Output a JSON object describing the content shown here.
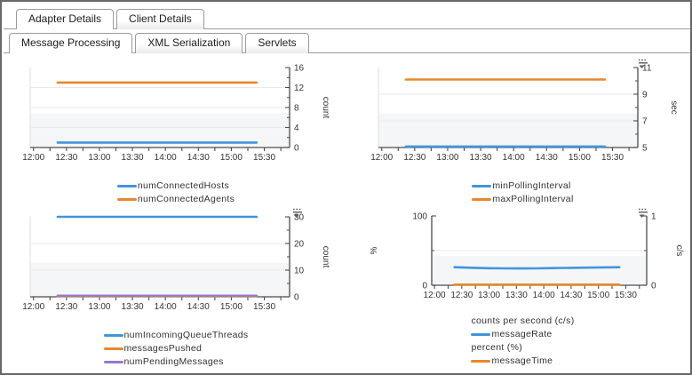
{
  "tabs_primary": [
    {
      "label": "Adapter Details",
      "active": true
    },
    {
      "label": "Client Details",
      "active": false
    }
  ],
  "tabs_secondary": [
    {
      "label": "Message Processing",
      "active": true
    },
    {
      "label": "XML Serialization",
      "active": false
    },
    {
      "label": "Servlets",
      "active": false
    }
  ],
  "colors": {
    "blue": "#4394DA",
    "orange": "#E8882A",
    "purple": "#9779C9",
    "grid": "#e7e9eb",
    "band": "#f5f6f8",
    "plot_edge": "#dddddd",
    "axis": "#4c4c4c",
    "tick_text": "#333333"
  },
  "time_axis": {
    "labels": [
      "12:00",
      "12:30",
      "13:00",
      "13:30",
      "14:00",
      "14:30",
      "15:00",
      "15:30"
    ],
    "label_step_min": 30,
    "minor_step_min": 15,
    "domain_start_min": -3,
    "domain_end_min": 233,
    "series_start_min": 22,
    "series_end_min": 203
  },
  "chart_data": [
    {
      "id": "connected-hosts-agents",
      "type": "line",
      "menu_icon": false,
      "y_right": {
        "title": "count",
        "min": 0,
        "max": 16,
        "majors": [
          0,
          4,
          8,
          12,
          16
        ],
        "minors": [
          2,
          6,
          10,
          14
        ],
        "grid": [
          4,
          8,
          12
        ]
      },
      "series": [
        {
          "name": "numConnectedHosts",
          "color_key": "blue",
          "axis": "right",
          "values": [
            1,
            1
          ]
        },
        {
          "name": "numConnectedAgents",
          "color_key": "orange",
          "axis": "right",
          "values": [
            13,
            13
          ]
        }
      ],
      "legend": [
        {
          "swatch": "blue",
          "label": "numConnectedHosts"
        },
        {
          "swatch": "orange",
          "label": "numConnectedAgents"
        }
      ]
    },
    {
      "id": "polling-interval",
      "type": "line",
      "menu_icon": true,
      "y_right": {
        "title": "sec",
        "min": 5,
        "max": 11,
        "majors": [
          5,
          7,
          9,
          11
        ],
        "minors": [
          6,
          8,
          10
        ],
        "grid": [
          7,
          9
        ]
      },
      "series": [
        {
          "name": "minPollingInterval",
          "color_key": "blue",
          "axis": "right",
          "values": [
            5.07,
            5.07
          ]
        },
        {
          "name": "maxPollingInterval",
          "color_key": "orange",
          "axis": "right",
          "values": [
            10.1,
            10.1
          ]
        }
      ],
      "legend": [
        {
          "swatch": "blue",
          "label": "minPollingInterval"
        },
        {
          "swatch": "orange",
          "label": "maxPollingInterval"
        }
      ]
    },
    {
      "id": "queue-threads-messages",
      "type": "line",
      "menu_icon": true,
      "y_right": {
        "title": "count",
        "min": 0,
        "max": 30,
        "majors": [
          0,
          10,
          20,
          30
        ],
        "minors": [
          5,
          15,
          25
        ],
        "grid": [
          10,
          20
        ]
      },
      "series": [
        {
          "name": "numIncomingQueueThreads",
          "color_key": "blue",
          "axis": "right",
          "values": [
            30,
            30
          ]
        },
        {
          "name": "messagesPushed",
          "color_key": "orange",
          "axis": "right",
          "values": [
            0.25,
            0.25
          ]
        },
        {
          "name": "numPendingMessages",
          "color_key": "purple",
          "axis": "right",
          "values": [
            0.4,
            0.4
          ]
        }
      ],
      "legend": [
        {
          "swatch": "blue",
          "label": "numIncomingQueueThreads"
        },
        {
          "swatch": "orange",
          "label": "messagesPushed"
        },
        {
          "swatch": "purple",
          "label": "numPendingMessages"
        }
      ]
    },
    {
      "id": "message-rate-time",
      "type": "line",
      "menu_icon": true,
      "y_left": {
        "title": "%",
        "min": 0,
        "max": 100,
        "majors": [
          0,
          100
        ],
        "minors": [
          50
        ],
        "grid": [
          50
        ]
      },
      "y_right": {
        "title": "c/s",
        "min": 0,
        "max": 1,
        "majors": [
          0,
          1
        ],
        "minors": [
          0.5
        ],
        "grid": []
      },
      "series": [
        {
          "name": "messageRate",
          "color_key": "blue",
          "axis": "right",
          "values": [
            0.26,
            0.252,
            0.246,
            0.243,
            0.242,
            0.244,
            0.247,
            0.251,
            0.254,
            0.258,
            0.26
          ]
        },
        {
          "name": "messageTime",
          "color_key": "orange",
          "axis": "left",
          "values": [
            0.9,
            0.9
          ]
        }
      ],
      "legend": [
        {
          "header": "counts per second (c/s)"
        },
        {
          "swatch": "blue",
          "label": "messageRate"
        },
        {
          "header": "percent (%)"
        },
        {
          "swatch": "orange",
          "label": "messageTime"
        }
      ]
    }
  ]
}
